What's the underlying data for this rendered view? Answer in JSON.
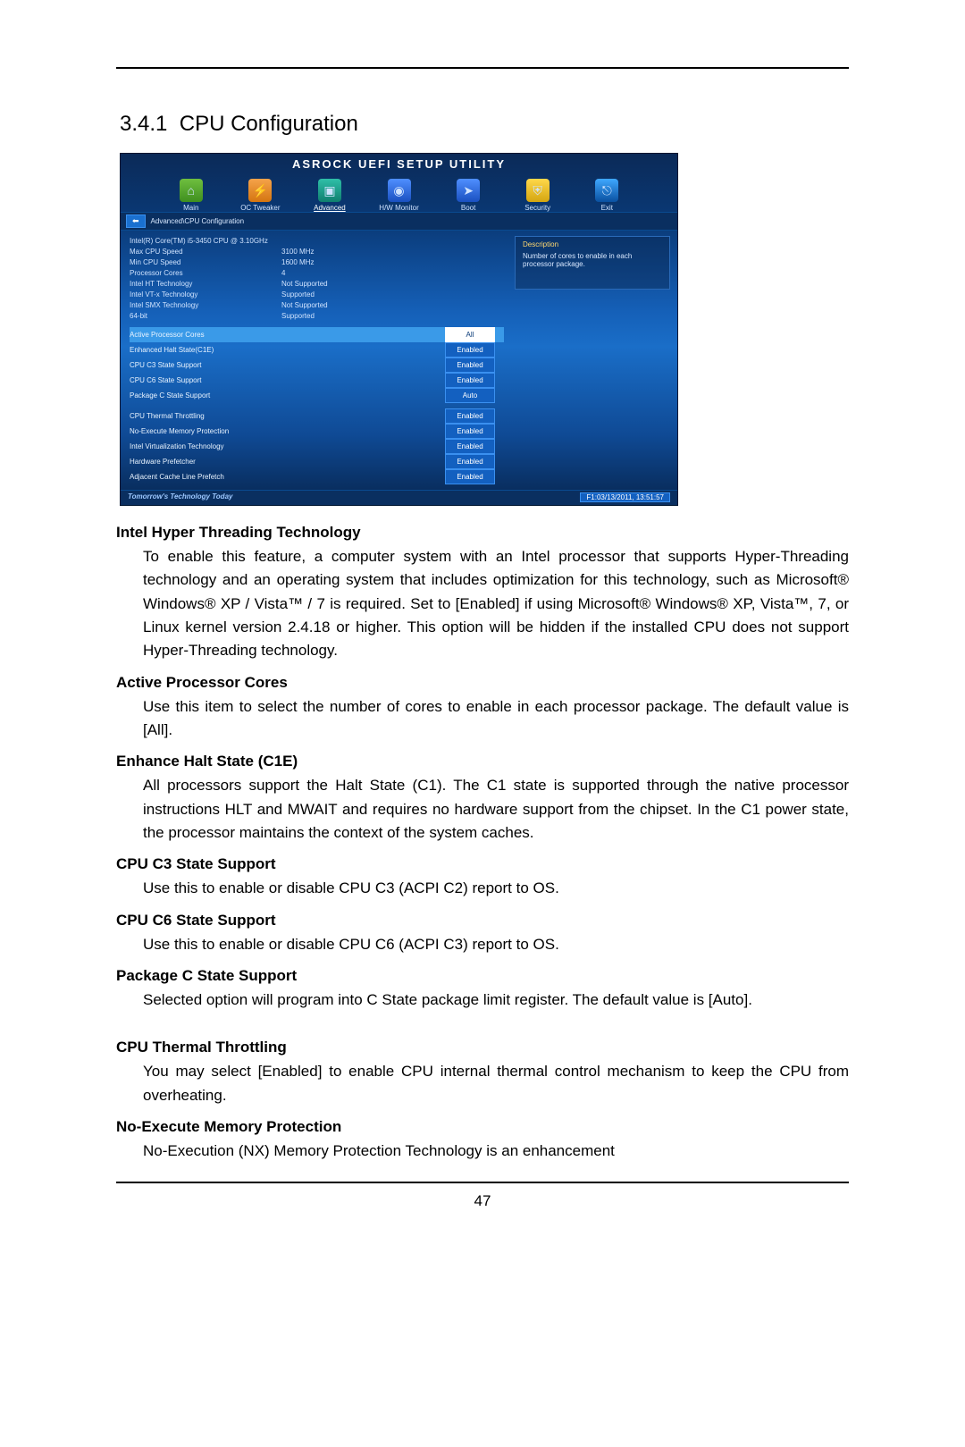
{
  "page": {
    "section_number": "3.4.1",
    "section_title": "CPU Configuration",
    "page_number": "47"
  },
  "bios": {
    "title": "ASROCK UEFI SETUP UTILITY",
    "tabs": [
      "Main",
      "OC Tweaker",
      "Advanced",
      "H/W Monitor",
      "Boot",
      "Security",
      "Exit"
    ],
    "breadcrumb": "Advanced\\CPU Configuration",
    "back_label": "⬅",
    "info": [
      {
        "label": "Intel(R) Core(TM) i5-3450 CPU @ 3.10GHz",
        "value": ""
      },
      {
        "label": "Max CPU Speed",
        "value": "3100 MHz"
      },
      {
        "label": "Min CPU Speed",
        "value": "1600 MHz"
      },
      {
        "label": "Processor Cores",
        "value": "4"
      },
      {
        "label": "Intel HT Technology",
        "value": "Not Supported"
      },
      {
        "label": "Intel VT-x Technology",
        "value": "Supported"
      },
      {
        "label": "Intel SMX Technology",
        "value": "Not Supported"
      },
      {
        "label": "64-bit",
        "value": "Supported"
      }
    ],
    "settings_a": [
      {
        "label": "Active Processor Cores",
        "value": "All",
        "selected": true
      },
      {
        "label": "Enhanced Halt State(C1E)",
        "value": "Enabled",
        "selected": false
      },
      {
        "label": "CPU C3 State Support",
        "value": "Enabled",
        "selected": false
      },
      {
        "label": "CPU C6 State Support",
        "value": "Enabled",
        "selected": false
      },
      {
        "label": "Package C State Support",
        "value": "Auto",
        "selected": false
      }
    ],
    "settings_b": [
      {
        "label": "CPU Thermal Throttling",
        "value": "Enabled",
        "selected": false
      },
      {
        "label": "No-Execute Memory Protection",
        "value": "Enabled",
        "selected": false
      },
      {
        "label": "Intel Virtualization Technology",
        "value": "Enabled",
        "selected": false
      },
      {
        "label": "Hardware Prefetcher",
        "value": "Enabled",
        "selected": false
      },
      {
        "label": "Adjacent Cache Line Prefetch",
        "value": "Enabled",
        "selected": false
      }
    ],
    "help": {
      "heading": "Description",
      "text": "Number of cores to enable in each processor package."
    },
    "footer_slogan": "Tomorrow's Technology Today",
    "footer_datetime": "F1:03/13/2011, 13:51:57"
  },
  "entries": [
    {
      "title": "Intel Hyper Threading Technology",
      "desc": "To enable this feature, a computer system with an Intel processor that supports Hyper-Threading technology and an operating system that includes optimization for this technology, such as Microsoft® Windows® XP / Vista™ / 7 is required. Set to [Enabled] if using Microsoft® Windows® XP, Vista™, 7, or Linux kernel version 2.4.18 or higher. This option will be hidden if the installed CPU does not support Hyper-Threading technology."
    },
    {
      "title": "Active Processor Cores",
      "desc": "Use this item to select the number of cores to enable in each processor package. The default value is [All]."
    },
    {
      "title": "Enhance Halt State (C1E)",
      "desc": "All processors support the Halt State (C1). The C1 state is supported through the native processor instructions HLT and MWAIT and requires no hardware support from the chipset. In the C1 power state, the processor maintains the context of the system caches."
    },
    {
      "title": "CPU C3 State Support",
      "desc": "Use this to enable or disable CPU C3 (ACPI C2) report to OS."
    },
    {
      "title": "CPU C6 State Support",
      "desc": "Use this to enable or disable CPU C6 (ACPI C3) report to OS."
    },
    {
      "title": "Package C State Support",
      "desc": "Selected option will program into C State package limit register. The default value is [Auto]."
    }
  ],
  "entries2": [
    {
      "title": "CPU Thermal Throttling",
      "desc": "You may select [Enabled] to enable CPU internal thermal control mechanism to keep the CPU from overheating."
    },
    {
      "title": "No-Execute Memory Protection",
      "desc": "No-Execution (NX) Memory Protection Technology is an enhancement"
    }
  ]
}
